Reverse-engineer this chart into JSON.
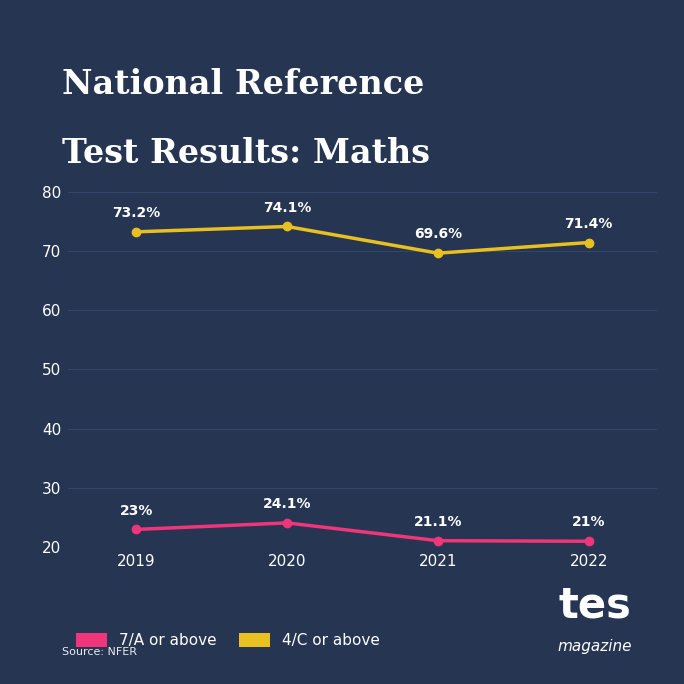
{
  "title_line1": "National Reference",
  "title_line2": "Test Results: Maths",
  "years": [
    2019,
    2020,
    2021,
    2022
  ],
  "series_7a": [
    23.0,
    24.1,
    21.1,
    21.0
  ],
  "series_4c": [
    73.2,
    74.1,
    69.6,
    71.4
  ],
  "labels_7a": [
    "23%",
    "24.1%",
    "21.1%",
    "21%"
  ],
  "labels_4c": [
    "73.2%",
    "74.1%",
    "69.6%",
    "71.4%"
  ],
  "color_7a": "#f0357a",
  "color_4c": "#e8c020",
  "background_color": "#253552",
  "text_color": "#ffffff",
  "grid_color": "#324668",
  "ylim": [
    20,
    80
  ],
  "yticks": [
    20,
    30,
    40,
    50,
    60,
    70,
    80
  ],
  "legend_7a": "7/A or above",
  "legend_4c": "4/C or above",
  "source_text": "Source: NFER",
  "line_width": 2.5,
  "marker_size": 6
}
